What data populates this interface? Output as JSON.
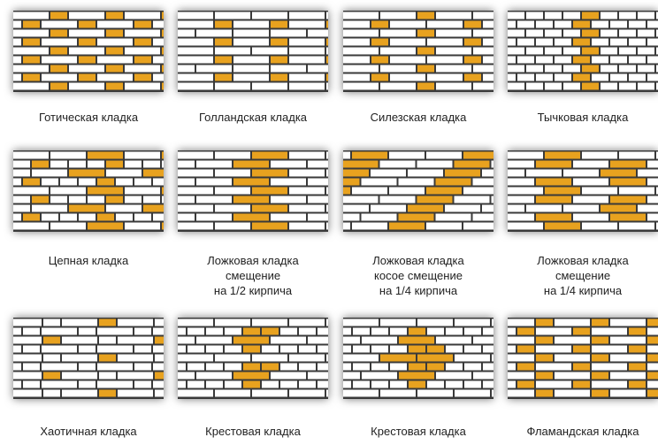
{
  "colors": {
    "brick": "#ffffff",
    "highlight": "#e8a21f",
    "mortar": "#3a3a3a"
  },
  "items": [
    {
      "label": [
        "Готическая кладка"
      ],
      "pattern": "gothic"
    },
    {
      "label": [
        "Голландская кладка"
      ],
      "pattern": "dutch"
    },
    {
      "label": [
        "Силезская кладка"
      ],
      "pattern": "silesian"
    },
    {
      "label": [
        "Тычковая кладка"
      ],
      "pattern": "header"
    },
    {
      "label": [
        "Цепная кладка"
      ],
      "pattern": "chain"
    },
    {
      "label": [
        "Ложковая кладка",
        "смещение",
        "на 1/2 кирпича"
      ],
      "pattern": "stretcher-half"
    },
    {
      "label": [
        "Ложковая кладка",
        "косое смещение",
        "на 1/4 кирпича"
      ],
      "pattern": "stretcher-quarter-diagonal"
    },
    {
      "label": [
        "Ложковая кладка",
        "смещение",
        "на 1/4 кирпича"
      ],
      "pattern": "stretcher-quarter"
    },
    {
      "label": [
        "Хаотичная кладка"
      ],
      "pattern": "chaotic"
    },
    {
      "label": [
        "Крестовая кладка"
      ],
      "pattern": "cross"
    },
    {
      "label": [
        "Крестовая кладка"
      ],
      "pattern": "cross-2"
    },
    {
      "label": [
        "Фламандская кладка"
      ],
      "pattern": "flemish"
    }
  ]
}
